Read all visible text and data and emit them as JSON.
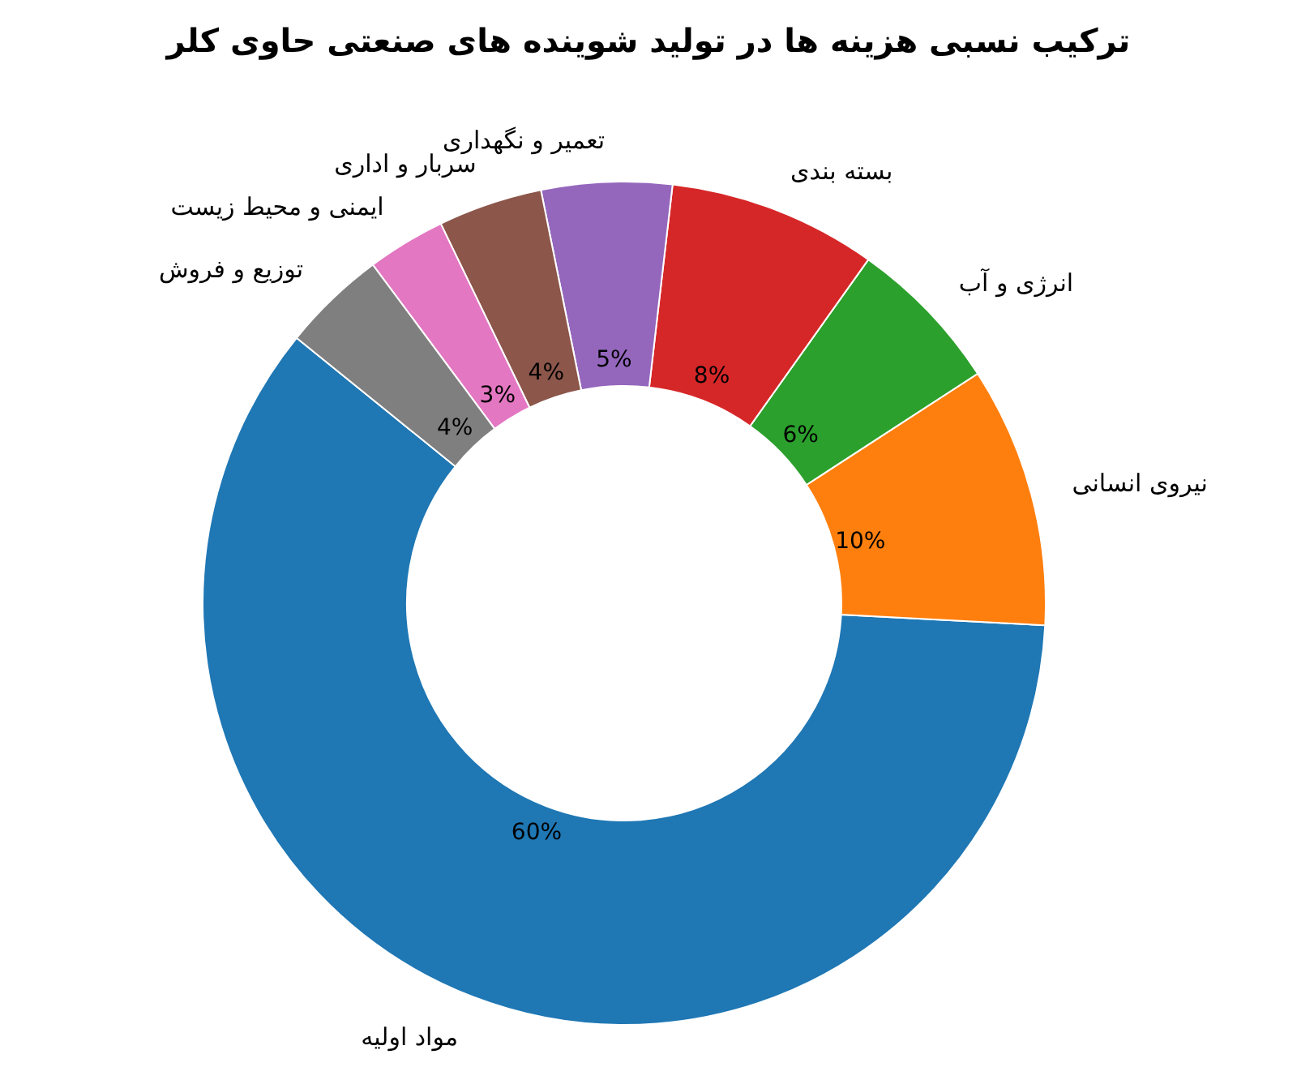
{
  "chart_data": {
    "type": "donut",
    "title": "ترکیب نسبی هزینه ها در تولید شوینده های صنعتی حاوی کلر",
    "categories": [
      "مواد اولیه",
      "نیروی انسانی",
      "انرژی و آب",
      "بسته بندی",
      "تعمیر و نگهداری",
      "سربار و اداری",
      "ایمنی و محیط زیست",
      "توزیع و فروش"
    ],
    "values": [
      60,
      10,
      6,
      8,
      5,
      4,
      3,
      4
    ],
    "colors": [
      "#1f77b4",
      "#ff7f0e",
      "#2ca02c",
      "#d62728",
      "#9467bd",
      "#8c564b",
      "#e377c2",
      "#7f7f7f"
    ],
    "value_labels": [
      "60%",
      "10%",
      "6%",
      "8%",
      "5%",
      "4%",
      "3%",
      "4%"
    ]
  }
}
